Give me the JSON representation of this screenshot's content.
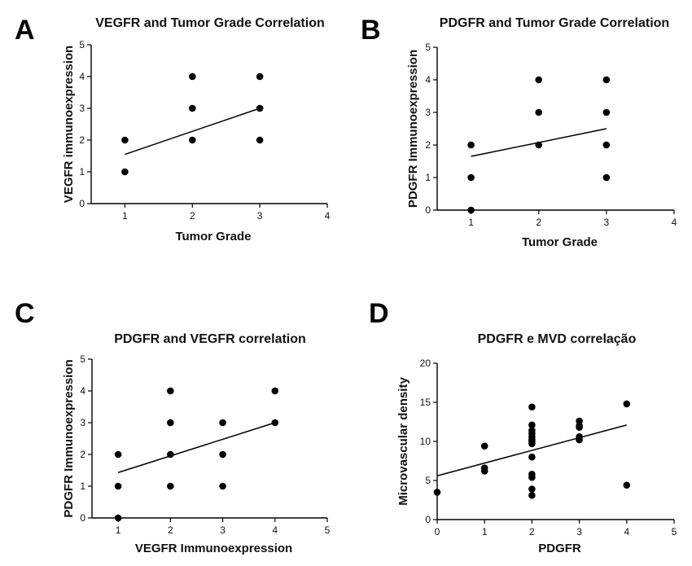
{
  "chart_data": [
    {
      "type": "scatter",
      "panel_label": "A",
      "title": "VEGFR and Tumor Grade Correlation",
      "xlabel": "Tumor Grade",
      "ylabel": "VEGFR immunoexpression",
      "xlim": [
        0.5,
        4
      ],
      "ylim": [
        0,
        5
      ],
      "xticks": [
        1,
        2,
        3,
        4
      ],
      "yticks": [
        0,
        1,
        2,
        3,
        4,
        5
      ],
      "grid": false,
      "x": [
        1,
        1,
        2,
        2,
        2,
        3,
        3,
        3
      ],
      "y": [
        1,
        2,
        2,
        3,
        4,
        2,
        3,
        4
      ],
      "fit_line": {
        "x": [
          1,
          3
        ],
        "y": [
          1.55,
          3.0
        ]
      }
    },
    {
      "type": "scatter",
      "panel_label": "B",
      "title": "PDGFR and Tumor Grade Correlation",
      "xlabel": "Tumor Grade",
      "ylabel": "PDGFR Immunoexpression",
      "xlim": [
        0.5,
        4
      ],
      "ylim": [
        0,
        5
      ],
      "xticks": [
        1,
        2,
        3,
        4
      ],
      "yticks": [
        0,
        1,
        2,
        3,
        4,
        5
      ],
      "grid": false,
      "x": [
        1,
        1,
        1,
        2,
        2,
        2,
        3,
        3,
        3,
        3
      ],
      "y": [
        0,
        1,
        2,
        2,
        3,
        4,
        1,
        2,
        3,
        4
      ],
      "fit_line": {
        "x": [
          1,
          3
        ],
        "y": [
          1.65,
          2.5
        ]
      }
    },
    {
      "type": "scatter",
      "panel_label": "C",
      "title": "PDGFR and VEGFR correlation",
      "xlabel": "VEGFR Immunoexpression",
      "ylabel": "PDGFR Immunoexpression",
      "xlim": [
        0.5,
        5
      ],
      "ylim": [
        0,
        5
      ],
      "xticks": [
        1,
        2,
        3,
        4,
        5
      ],
      "yticks": [
        0,
        1,
        2,
        3,
        4,
        5
      ],
      "grid": false,
      "x": [
        1,
        1,
        1,
        2,
        2,
        2,
        2,
        3,
        3,
        3,
        4,
        4
      ],
      "y": [
        0,
        1,
        2,
        1,
        2,
        3,
        4,
        1,
        2,
        3,
        3,
        4
      ],
      "fit_line": {
        "x": [
          1,
          4
        ],
        "y": [
          1.43,
          3.0
        ]
      }
    },
    {
      "type": "scatter",
      "panel_label": "D",
      "title": "PDGFR e MVD correlação",
      "xlabel": "PDGFR",
      "ylabel": "Microvascular density",
      "xlim": [
        0,
        5
      ],
      "ylim": [
        0,
        20
      ],
      "xticks": [
        0,
        1,
        2,
        3,
        4,
        5
      ],
      "yticks": [
        0,
        5,
        10,
        15,
        20
      ],
      "grid": false,
      "x": [
        0,
        1,
        1,
        1,
        2,
        2,
        2,
        2,
        2,
        2,
        2,
        2,
        2,
        2,
        2,
        2,
        2,
        3,
        3,
        3,
        3,
        3,
        4,
        4
      ],
      "y": [
        3.5,
        6.2,
        6.6,
        9.4,
        3.1,
        3.9,
        5.4,
        5.8,
        8.0,
        9.7,
        10.2,
        10.6,
        11.0,
        11.4,
        12.1,
        14.4,
        10.0,
        10.2,
        10.6,
        11.8,
        12.0,
        12.6,
        4.4,
        14.8
      ],
      "fit_line": {
        "x": [
          0,
          4
        ],
        "y": [
          5.6,
          12.1
        ]
      }
    }
  ]
}
